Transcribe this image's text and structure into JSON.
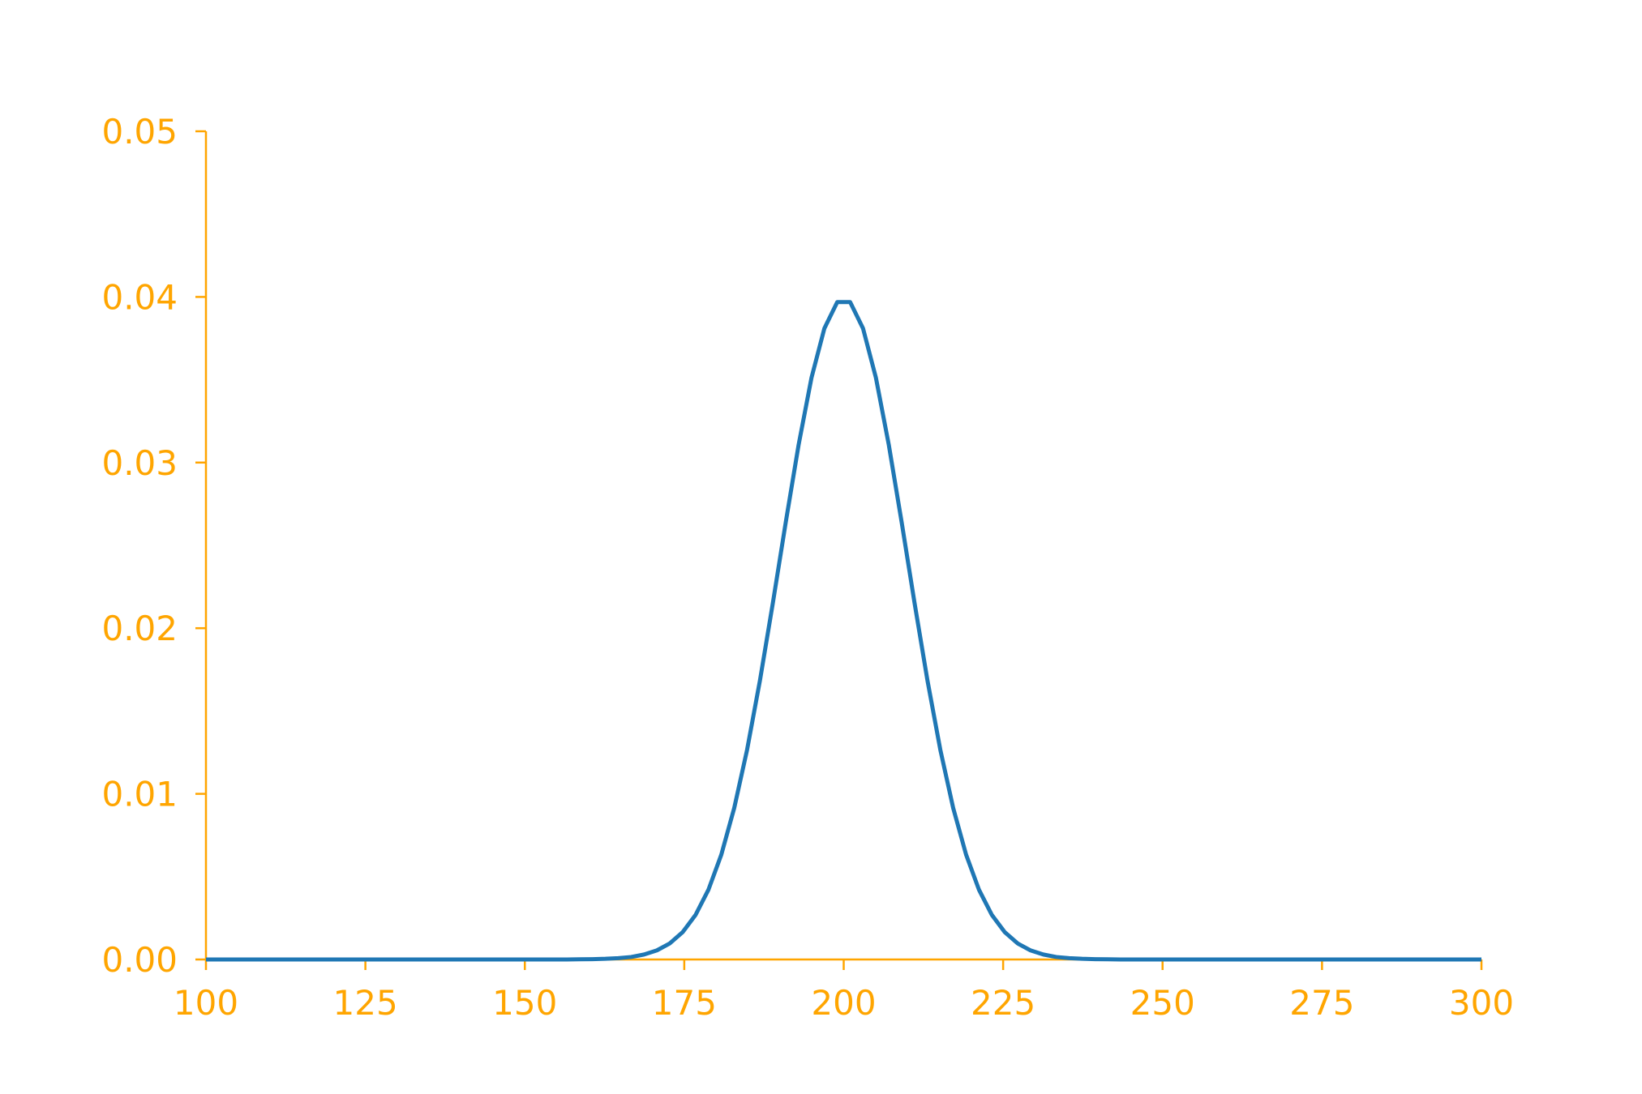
{
  "chart_data": {
    "type": "line",
    "x": [
      100.0,
      102.02,
      104.04,
      106.06,
      108.08,
      110.1,
      112.12,
      114.14,
      116.16,
      118.18,
      120.2,
      122.22,
      124.24,
      126.26,
      128.28,
      130.3,
      132.32,
      134.34,
      136.36,
      138.38,
      140.4,
      142.42,
      144.44,
      146.46,
      148.48,
      150.51,
      152.53,
      154.55,
      156.57,
      158.59,
      160.61,
      162.63,
      164.65,
      166.67,
      168.69,
      170.71,
      172.73,
      174.75,
      176.77,
      178.79,
      180.81,
      182.83,
      184.85,
      186.87,
      188.89,
      190.91,
      192.93,
      194.95,
      196.97,
      198.99,
      201.01,
      203.03,
      205.05,
      207.07,
      209.09,
      211.11,
      213.13,
      215.15,
      217.17,
      219.19,
      221.21,
      223.23,
      225.25,
      227.27,
      229.29,
      231.31,
      233.33,
      235.35,
      237.37,
      239.39,
      241.41,
      243.43,
      245.45,
      247.47,
      249.49,
      251.52,
      253.54,
      255.56,
      257.58,
      259.6,
      261.62,
      263.64,
      265.66,
      267.68,
      269.7,
      271.72,
      273.74,
      275.76,
      277.78,
      279.8,
      281.82,
      283.84,
      285.86,
      287.88,
      289.9,
      291.92,
      293.94,
      295.96,
      297.98,
      300.0
    ],
    "values": [
      0,
      0,
      0,
      0,
      0,
      0,
      0,
      0,
      0,
      0,
      0,
      0,
      0,
      0,
      0,
      0,
      0,
      0,
      0,
      0,
      0,
      0,
      0,
      0,
      0,
      0,
      0,
      0,
      0,
      1e-05,
      2e-05,
      4e-05,
      8e-05,
      0.00015,
      0.0003,
      0.00055,
      0.00097,
      0.00165,
      0.00269,
      0.00421,
      0.00633,
      0.00914,
      0.01266,
      0.01685,
      0.02152,
      0.02639,
      0.03107,
      0.03512,
      0.0381,
      0.03969,
      0.03969,
      0.0381,
      0.03512,
      0.03107,
      0.02639,
      0.02152,
      0.01685,
      0.01266,
      0.00914,
      0.00633,
      0.00421,
      0.00269,
      0.00165,
      0.00097,
      0.00055,
      0.0003,
      0.00015,
      8e-05,
      4e-05,
      2e-05,
      1e-05,
      0,
      0,
      0,
      0,
      0,
      0,
      0,
      0,
      0,
      0,
      0,
      0,
      0,
      0,
      0,
      0,
      0,
      0,
      0,
      0,
      0,
      0,
      0,
      0,
      0,
      0,
      0,
      0,
      0
    ],
    "color": "#1f77b4",
    "axis_color": "#ffa500",
    "xlim": [
      100,
      300
    ],
    "xticks": [
      100,
      125,
      150,
      175,
      200,
      225,
      250,
      275,
      300
    ],
    "ylim": [
      0,
      0.05
    ],
    "yticks": [
      {
        "value": 0,
        "label": "0.00"
      },
      {
        "value": 0.01,
        "label": "0.01"
      },
      {
        "value": 0.02,
        "label": "0.02"
      },
      {
        "value": 0.03,
        "label": "0.03"
      },
      {
        "value": 0.04,
        "label": "0.04"
      },
      {
        "value": 0.05,
        "label": "0.05"
      }
    ],
    "grid": false
  }
}
